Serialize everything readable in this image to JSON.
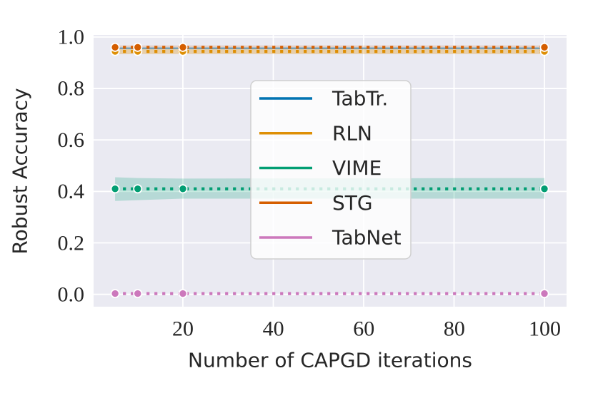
{
  "chart_data": {
    "type": "line",
    "title": "",
    "xlabel": "Number of CAPGD iterations",
    "ylabel": "Robust Accuracy",
    "xlim": [
      0.24,
      104.9
    ],
    "ylim": [
      -0.048,
      1.008
    ],
    "grid": true,
    "plot_background": "#eaeaf2",
    "gridline_color": "#ffffff",
    "text_color": "#262626",
    "xtick_values": [
      20,
      40,
      60,
      80,
      100
    ],
    "xtick_labels": [
      "20",
      "40",
      "60",
      "80",
      "100"
    ],
    "ytick_values": [
      0.0,
      0.2,
      0.4,
      0.6,
      0.8,
      1.0
    ],
    "ytick_labels": [
      "0.0",
      "0.2",
      "0.4",
      "0.6",
      "0.8",
      "1.0"
    ],
    "x": [
      5,
      10,
      20,
      100
    ],
    "series": [
      {
        "name": "TabTr.",
        "color": "#0173b2",
        "style": "solid",
        "opacity": 0.5,
        "values": [
          0.956,
          0.956,
          0.956,
          0.956
        ],
        "markers": false,
        "band": null
      },
      {
        "name": "RLN",
        "color": "#de8f05",
        "style": "dotted",
        "opacity": 1,
        "values": [
          0.944,
          0.944,
          0.944,
          0.944
        ],
        "markers": true,
        "band": {
          "low": [
            0.933,
            0.934,
            0.934,
            0.934
          ],
          "high": [
            0.954,
            0.954,
            0.954,
            0.954
          ],
          "opacity": 0.3
        }
      },
      {
        "name": "VIME",
        "color": "#029e73",
        "style": "dotted",
        "opacity": 1,
        "values": [
          0.41,
          0.41,
          0.41,
          0.41
        ],
        "markers": true,
        "band": {
          "low": [
            0.363,
            0.366,
            0.372,
            0.372
          ],
          "high": [
            0.455,
            0.452,
            0.45,
            0.452
          ],
          "opacity": 0.22
        }
      },
      {
        "name": "STG",
        "color": "#d55e00",
        "style": "dotted",
        "opacity": 1,
        "values": [
          0.96,
          0.96,
          0.96,
          0.96
        ],
        "markers": true,
        "band": {
          "low": [
            0.953,
            0.953,
            0.953,
            0.953
          ],
          "high": [
            0.967,
            0.967,
            0.967,
            0.967
          ],
          "opacity": 0.18
        }
      },
      {
        "name": "TabNet",
        "color": "#cc78bc",
        "style": "dotted",
        "opacity": 1,
        "values": [
          0.003,
          0.003,
          0.003,
          0.003
        ],
        "markers": true,
        "band": null
      }
    ],
    "legend": {
      "position": "center",
      "items": [
        "TabTr.",
        "RLN",
        "VIME",
        "STG",
        "TabNet"
      ]
    }
  }
}
